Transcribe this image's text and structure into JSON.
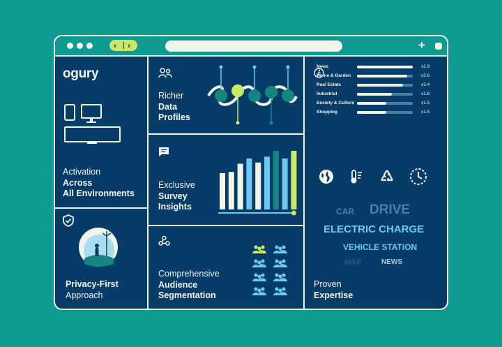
{
  "brand": {
    "logo_text": "ogury"
  },
  "panels": {
    "activation": {
      "line1": "Activation",
      "line2": "Across",
      "line3": "All Environments"
    },
    "privacy": {
      "line1": "Privacy-First",
      "line2": "Approach"
    },
    "richer": {
      "line1": "Richer",
      "line2": "Data",
      "line3": "Profiles"
    },
    "survey": {
      "line1": "Exclusive",
      "line2": "Survey",
      "line3": "Insights"
    },
    "segmentation": {
      "line1": "Comprehensive",
      "line2": "Audience",
      "line3": "Segmentation"
    },
    "expertise": {
      "line1": "Proven",
      "line2": "Expertise"
    }
  },
  "industries": [
    {
      "label": "News",
      "value": "x2.9",
      "fill": 1.0
    },
    {
      "label": "Home & Garden",
      "value": "x2.6",
      "fill": 0.9
    },
    {
      "label": "Real Estate",
      "value": "x2.4",
      "fill": 0.83
    },
    {
      "label": "Industrial",
      "value": "x1.8",
      "fill": 0.62
    },
    {
      "label": "Society & Culture",
      "value": "x1.5",
      "fill": 0.52
    },
    {
      "label": "Shopping",
      "value": "x1.5",
      "fill": 0.52
    }
  ],
  "word_cloud": [
    {
      "text": "CAR",
      "color": "#4f7da0"
    },
    {
      "text": "DRIVE",
      "color": "#4f7da0"
    },
    {
      "text": "ELECTRIC CHARGE",
      "color": "#6ec7ee"
    },
    {
      "text": "VEHICLE STATION",
      "color": "#6ec7ee"
    },
    {
      "text": "MAP",
      "color": "#2a5a80"
    },
    {
      "text": "NEWS",
      "color": "#b7c8d6"
    }
  ],
  "survey_chart": {
    "values": [
      0.62,
      0.64,
      0.78,
      0.87,
      0.8,
      0.9,
      1.0,
      0.87,
      1.0
    ],
    "colors": [
      "#f1f5e9",
      "#f1f5e9",
      "#f1f5e9",
      "#6ec7ee",
      "#f1f5e9",
      "#6ec7ee",
      "#14867f",
      "#6ec7ee",
      "#c7e86a"
    ]
  },
  "colors": {
    "accent": "#c7e86a",
    "sky": "#6ec7ee",
    "teal": "#0f9a92",
    "navy": "#073c68",
    "light": "#f1f5e9"
  },
  "icons": [
    "back-arrow-icon",
    "forward-arrow-icon",
    "plus-icon",
    "window-icon",
    "devices-icon",
    "shield-check-icon",
    "users-icon",
    "chat-icon",
    "webhook-icon",
    "person-walking-icon",
    "globe-icon",
    "thermometer-icon",
    "recycle-icon",
    "clock-icon",
    "people-group-icon"
  ]
}
